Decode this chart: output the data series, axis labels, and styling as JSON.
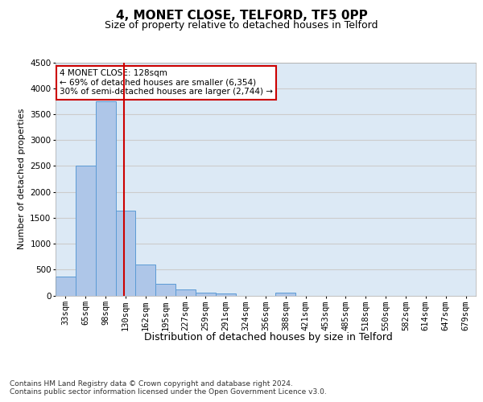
{
  "title1": "4, MONET CLOSE, TELFORD, TF5 0PP",
  "title2": "Size of property relative to detached houses in Telford",
  "xlabel": "Distribution of detached houses by size in Telford",
  "ylabel": "Number of detached properties",
  "categories": [
    "33sqm",
    "65sqm",
    "98sqm",
    "130sqm",
    "162sqm",
    "195sqm",
    "227sqm",
    "259sqm",
    "291sqm",
    "324sqm",
    "356sqm",
    "388sqm",
    "421sqm",
    "453sqm",
    "485sqm",
    "518sqm",
    "550sqm",
    "582sqm",
    "614sqm",
    "647sqm",
    "679sqm"
  ],
  "values": [
    370,
    2500,
    3750,
    1640,
    590,
    230,
    110,
    60,
    35,
    0,
    0,
    60,
    0,
    0,
    0,
    0,
    0,
    0,
    0,
    0,
    0
  ],
  "bar_color": "#aec6e8",
  "bar_edge_color": "#5b9bd5",
  "vline_color": "#cc0000",
  "annotation_text": "4 MONET CLOSE: 128sqm\n← 69% of detached houses are smaller (6,354)\n30% of semi-detached houses are larger (2,744) →",
  "annotation_box_color": "#ffffff",
  "annotation_box_edge": "#cc0000",
  "ylim": [
    0,
    4500
  ],
  "yticks": [
    0,
    500,
    1000,
    1500,
    2000,
    2500,
    3000,
    3500,
    4000,
    4500
  ],
  "grid_color": "#cccccc",
  "bg_color": "#dce9f5",
  "footer1": "Contains HM Land Registry data © Crown copyright and database right 2024.",
  "footer2": "Contains public sector information licensed under the Open Government Licence v3.0.",
  "title1_fontsize": 11,
  "title2_fontsize": 9,
  "xlabel_fontsize": 9,
  "ylabel_fontsize": 8,
  "tick_fontsize": 7.5,
  "annotation_fontsize": 7.5,
  "footer_fontsize": 6.5
}
